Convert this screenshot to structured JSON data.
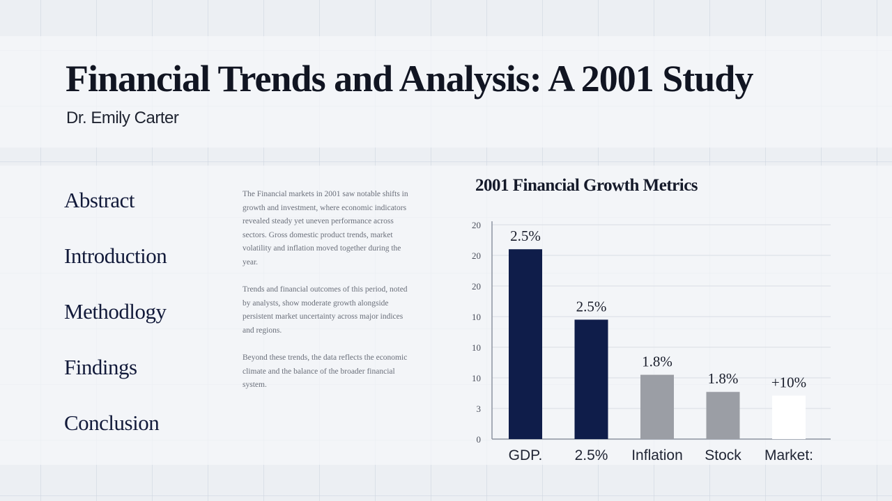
{
  "title": "Financial Trends and Analysis: A 2001 Study",
  "author": "Dr. Emily Carter",
  "toc": [
    "Abstract",
    "Introduction",
    "Methodlogy",
    "Findings",
    "Conclusion"
  ],
  "body_paragraphs": [
    "The Financial markets in 2001 saw notable shifts in growth and investment, where economic indicators revealed steady yet uneven performance across sectors. Gross domestic product trends, market volatility and inflation moved together during the year.",
    "Trends and financial outcomes of this period, noted by analysts, show moderate growth alongside persistent market uncertainty across major indices and regions.",
    "Beyond these trends, the data reflects the economic climate and the balance of the broader financial system."
  ],
  "colors": {
    "dark_bar": "#0f1d4a",
    "gray_bar": "#9b9ea5",
    "white_bar": "#ffffff",
    "axis": "#8c939f",
    "grid": "#d8dde5"
  },
  "chart_data": {
    "type": "bar",
    "title": "2001 Financial Growth Metrics",
    "y_tick_labels": [
      "0",
      "3",
      "10",
      "10",
      "10",
      "20",
      "20",
      "20"
    ],
    "ylim": [
      0,
      35
    ],
    "x_tick_labels": [
      "GDP.",
      "2.5%",
      "Inflation",
      "Stock",
      "Market:"
    ],
    "bars": [
      {
        "value": 31,
        "label": "2.5%",
        "color": "dark"
      },
      {
        "value": 19.5,
        "label": "2.5%",
        "color": "dark"
      },
      {
        "value": 10.5,
        "label": "1.8%",
        "color": "gray"
      },
      {
        "value": 7.7,
        "label": "1.8%",
        "color": "gray"
      },
      {
        "value": 7.1,
        "label": "+10%",
        "color": "white"
      }
    ],
    "grid": true
  }
}
